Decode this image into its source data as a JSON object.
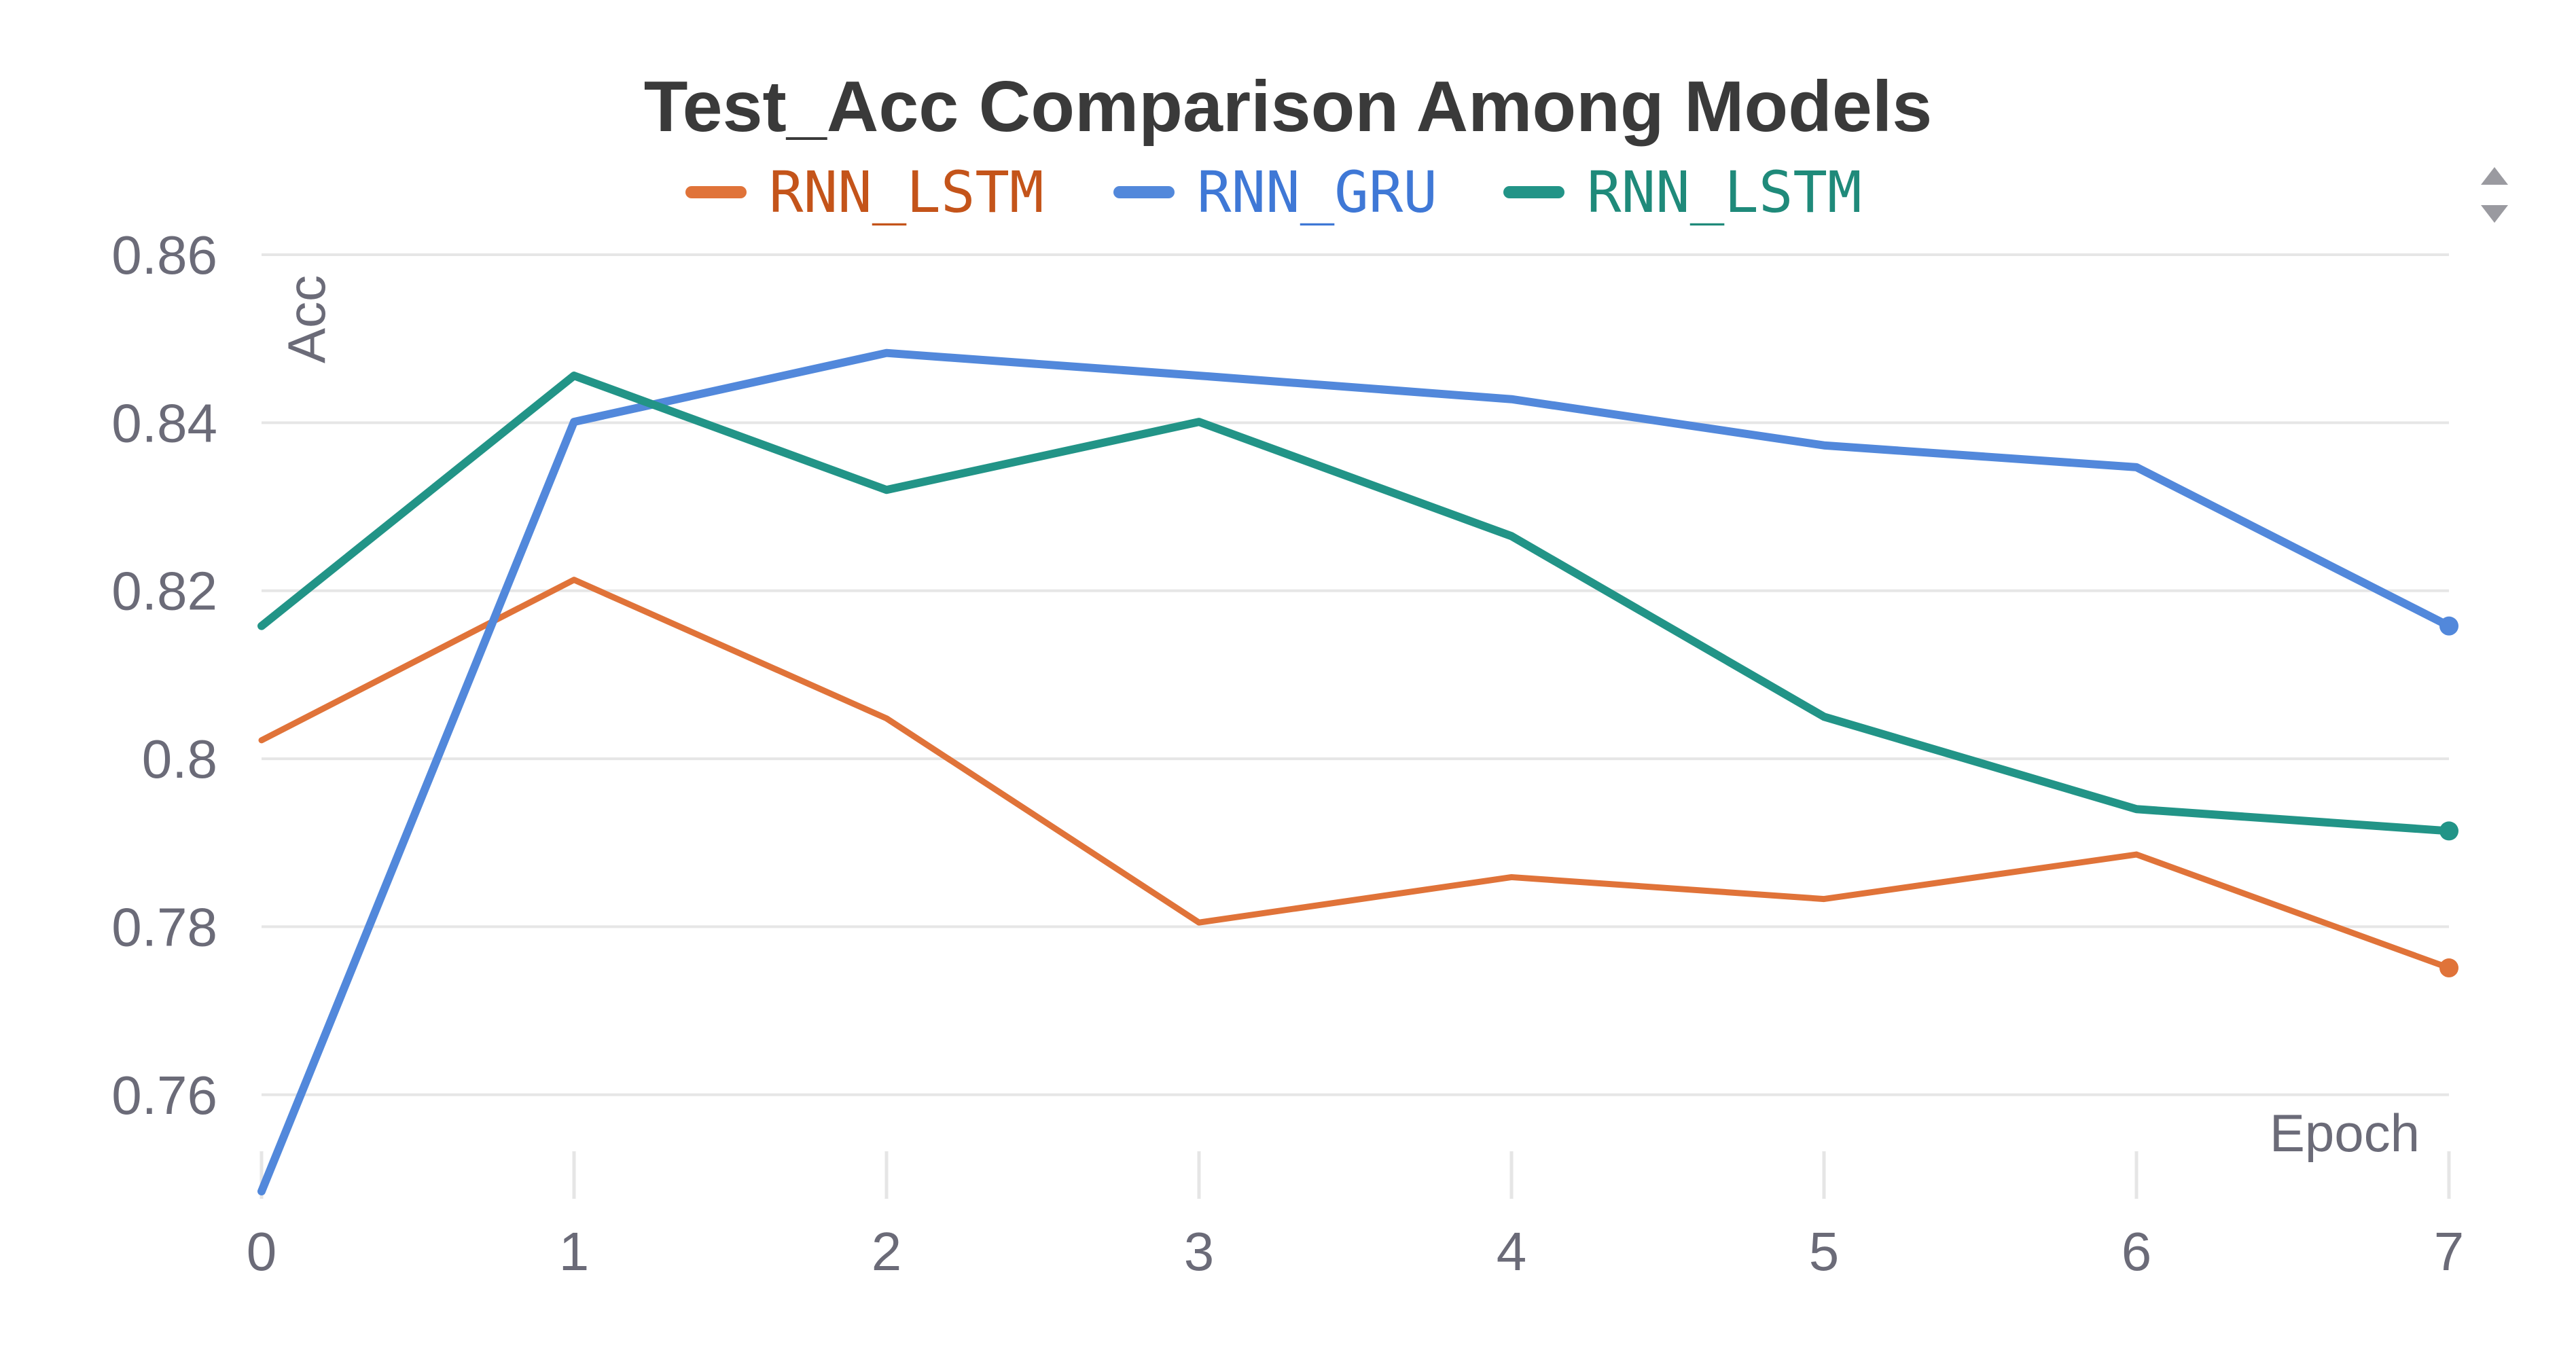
{
  "chart_data": {
    "type": "line",
    "title": "Test_Acc Comparison Among Models",
    "xlabel": "Epoch",
    "ylabel": "Acc",
    "x": [
      0,
      1,
      2,
      3,
      4,
      5,
      6,
      7
    ],
    "xlim": [
      0,
      7
    ],
    "ylim": [
      0.7485,
      0.86
    ],
    "yticks": [
      0.76,
      0.78,
      0.8,
      0.82,
      0.84,
      0.86
    ],
    "ytick_labels": [
      "0.76",
      "0.78",
      "0.8",
      "0.82",
      "0.84",
      "0.86"
    ],
    "xtick_labels": [
      "0",
      "1",
      "2",
      "3",
      "4",
      "5",
      "6",
      "7"
    ],
    "grid": true,
    "legend_position": "top-center",
    "series": [
      {
        "name": "RNN_LSTM",
        "color": "#e07339",
        "label_color": "#c4541a",
        "values": [
          0.8022,
          0.8213,
          0.8048,
          0.7805,
          0.7859,
          0.7833,
          0.7886,
          0.7751
        ]
      },
      {
        "name": "RNN_GRU",
        "color": "#5288db",
        "label_color": "#3f78d6",
        "values": [
          0.7485,
          0.8401,
          0.8483,
          0.8456,
          0.8428,
          0.8373,
          0.8347,
          0.8158
        ]
      },
      {
        "name": "RNN_LSTM",
        "color": "#229487",
        "label_color": "#1f8a7a",
        "values": [
          0.8158,
          0.8456,
          0.832,
          0.8401,
          0.8265,
          0.805,
          0.794,
          0.7914
        ]
      }
    ]
  },
  "icons": {
    "scroll": "scroll-up-down-icon"
  }
}
